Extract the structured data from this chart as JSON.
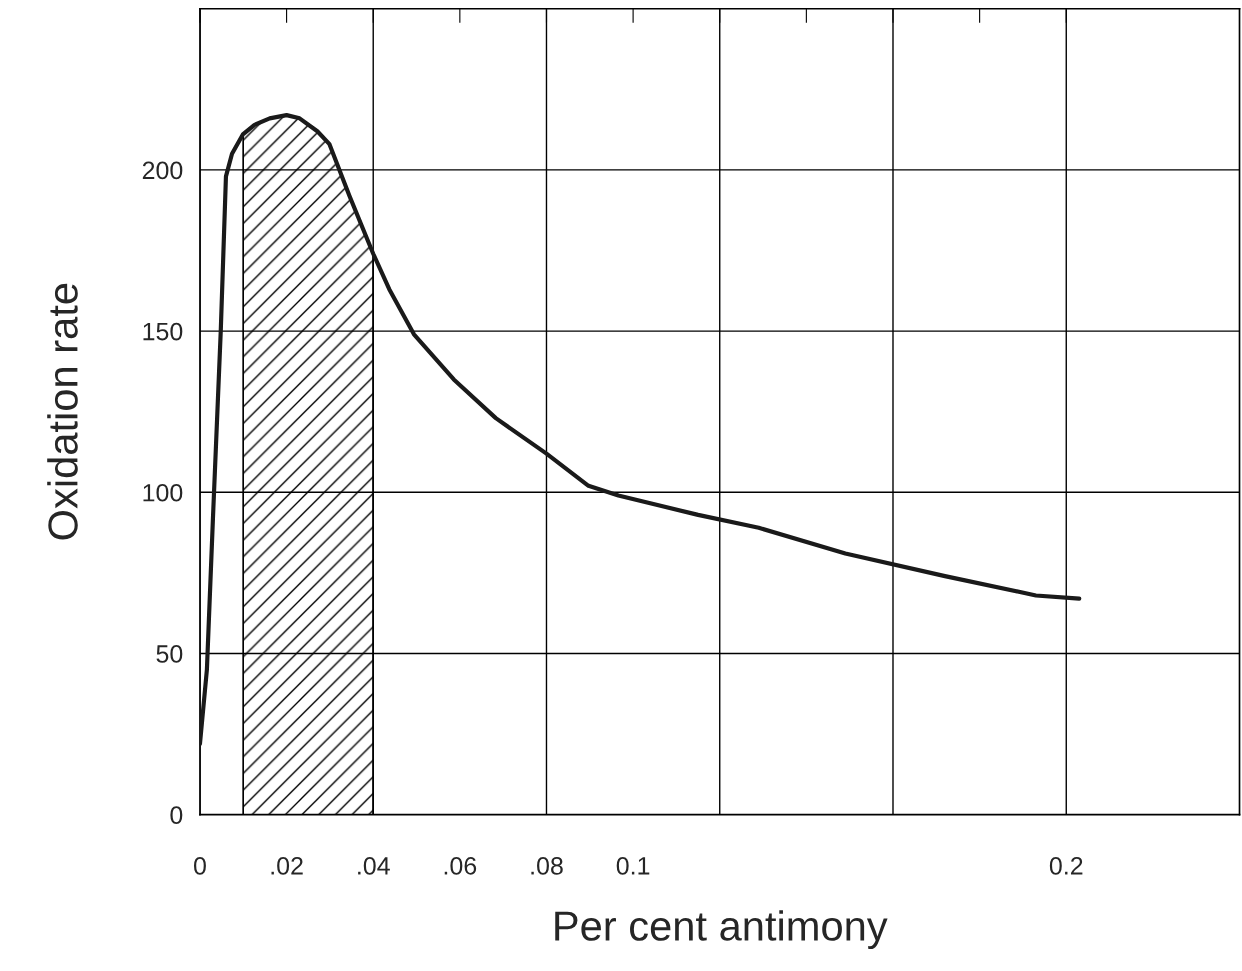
{
  "chart_data": {
    "type": "line",
    "xlabel": "Per cent antimony",
    "ylabel": "Oxidation rate",
    "x": [
      0,
      0.0016,
      0.003,
      0.0048,
      0.006,
      0.0074,
      0.0099,
      0.0126,
      0.0161,
      0.02,
      0.023,
      0.0271,
      0.0299,
      0.0345,
      0.04,
      0.0437,
      0.0494,
      0.0586,
      0.0683,
      0.08,
      0.0897,
      0.0966,
      0.115,
      0.129,
      0.149,
      0.172,
      0.193,
      0.203
    ],
    "series": [
      {
        "color": "#1a1a1a",
        "values": [
          22,
          45,
          92,
          150,
          198,
          205,
          211,
          214,
          216,
          217,
          216,
          212,
          208,
          192,
          174,
          163,
          149,
          135,
          123,
          112,
          102,
          99,
          93,
          89,
          81,
          74,
          68,
          67
        ]
      }
    ],
    "xlim": [
      0,
      0.24
    ],
    "ylim": [
      0,
      250
    ],
    "xticks": [
      0,
      {
        "value": 0.02,
        "label": ".02"
      },
      {
        "value": 0.04,
        "label": ".04"
      },
      {
        "value": 0.06,
        "label": ".06"
      },
      {
        "value": 0.08,
        "label": ".08"
      },
      0.1,
      {
        "value": 0.12,
        "label": null
      },
      {
        "value": 0.14,
        "label": null
      },
      {
        "value": 0.16,
        "label": null
      },
      {
        "value": 0.18,
        "label": null
      },
      0.2
    ],
    "yticks": [
      0,
      50,
      100,
      150,
      200
    ],
    "grid": true,
    "bands": [
      {
        "axis": "x",
        "from": 0.01,
        "to": 0.04,
        "color": "#000000"
      }
    ]
  }
}
